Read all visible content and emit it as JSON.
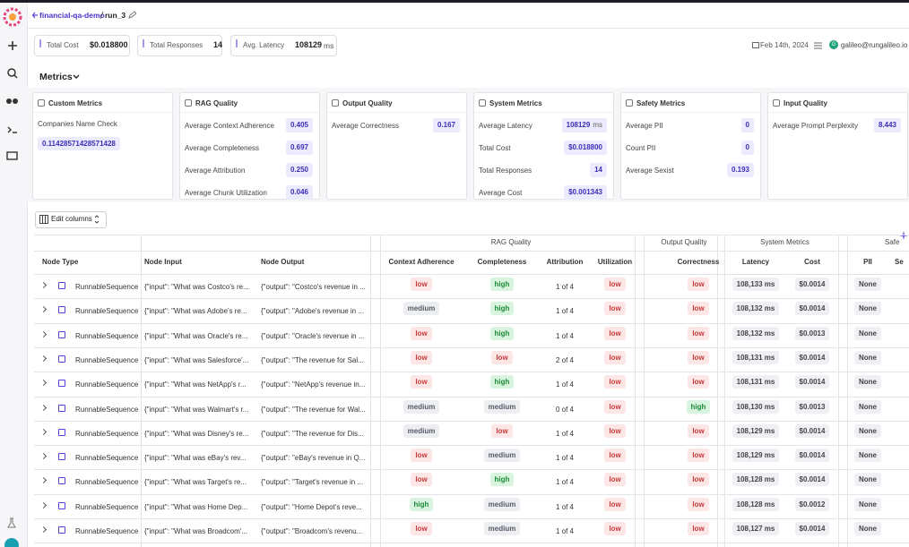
{
  "header": {
    "project": "financial-qa-demo",
    "run": "run_3",
    "date": "Feb 14th, 2024",
    "avatar": "G",
    "user": "galileo@rungalileo.io"
  },
  "stats": [
    {
      "label": "Total Cost",
      "value": "$0.018800"
    },
    {
      "label": "Total Responses",
      "value": "14"
    },
    {
      "label": "Avg. Latency",
      "value": "108129",
      "unit": "ms"
    }
  ],
  "metrics": {
    "title": "Metrics",
    "cards": [
      {
        "title": "Custom Metrics",
        "items": [
          {
            "label": "Companies Name Check",
            "value": "0.11428571428571428"
          }
        ]
      },
      {
        "title": "RAG Quality",
        "items": [
          {
            "label": "Average Context Adherence",
            "value": "0.405"
          },
          {
            "label": "Average Completeness",
            "value": "0.697"
          },
          {
            "label": "Average Attribution",
            "value": "0.250"
          },
          {
            "label": "Average Chunk Utilization",
            "value": "0.046"
          }
        ]
      },
      {
        "title": "Output Quality",
        "items": [
          {
            "label": "Average Correctness",
            "value": "0.167"
          }
        ]
      },
      {
        "title": "System Metrics",
        "items": [
          {
            "label": "Average Latency",
            "value": "108129",
            "unit": "ms"
          },
          {
            "label": "Total Cost",
            "value": "$0.018800"
          },
          {
            "label": "Total Responses",
            "value": "14"
          },
          {
            "label": "Average Cost",
            "value": "$0.001343"
          }
        ]
      },
      {
        "title": "Safety Metrics",
        "items": [
          {
            "label": "Average PII",
            "value": "0"
          },
          {
            "label": "Count PII",
            "value": "0"
          },
          {
            "label": "Average Sexist",
            "value": "0.193"
          }
        ]
      },
      {
        "title": "Input Quality",
        "items": [
          {
            "label": "Average Prompt Perplexity",
            "value": "8.443"
          }
        ]
      }
    ]
  },
  "edit_columns": "Edit columns",
  "table": {
    "groups": [
      "RAG Quality",
      "Output Quality",
      "System Metrics",
      "Safe"
    ],
    "columns": [
      "Node Type",
      "Node Input",
      "Node Output",
      "Context Adherence",
      "Completeness",
      "Attribution",
      "Utilization",
      "Correctness",
      "Latency",
      "Cost",
      "PII",
      "Se"
    ],
    "badge_colors": {
      "low": {
        "bg": "#fde6e6",
        "fg": "#c53b3b"
      },
      "medium": {
        "bg": "#eceef1",
        "fg": "#555b66"
      },
      "high": {
        "bg": "#d9f4de",
        "fg": "#1c8a3a"
      }
    },
    "rows": [
      [
        "RunnableSequence",
        "{\"input\": \"What was Costco's re...",
        "{\"output\": \"Costco's revenue in ...",
        "low",
        "high",
        "1 of 4",
        "low",
        "low",
        "108,133 ms",
        "$0.0014",
        "None"
      ],
      [
        "RunnableSequence",
        "{\"input\": \"What was Adobe's re...",
        "{\"output\": \"Adobe's revenue in ...",
        "medium",
        "high",
        "1 of 4",
        "low",
        "low",
        "108,132 ms",
        "$0.0014",
        "None"
      ],
      [
        "RunnableSequence",
        "{\"input\": \"What was Oracle's re...",
        "{\"output\": \"Oracle's revenue in ...",
        "low",
        "high",
        "1 of 4",
        "low",
        "low",
        "108,132 ms",
        "$0.0013",
        "None"
      ],
      [
        "RunnableSequence",
        "{\"input\": \"What was Salesforce'...",
        "{\"output\": \"The revenue for Sal...",
        "low",
        "low",
        "2 of 4",
        "low",
        "low",
        "108,131 ms",
        "$0.0014",
        "None"
      ],
      [
        "RunnableSequence",
        "{\"input\": \"What was NetApp's r...",
        "{\"output\": \"NetApp's revenue in...",
        "low",
        "high",
        "1 of 4",
        "low",
        "low",
        "108,131 ms",
        "$0.0014",
        "None"
      ],
      [
        "RunnableSequence",
        "{\"input\": \"What was Walmart's r...",
        "{\"output\": \"The revenue for Wal...",
        "medium",
        "medium",
        "0 of 4",
        "low",
        "high",
        "108,130 ms",
        "$0.0013",
        "None"
      ],
      [
        "RunnableSequence",
        "{\"input\": \"What was Disney's re...",
        "{\"output\": \"The revenue for Dis...",
        "medium",
        "low",
        "1 of 4",
        "low",
        "low",
        "108,129 ms",
        "$0.0014",
        "None"
      ],
      [
        "RunnableSequence",
        "{\"input\": \"What was eBay's rev...",
        "{\"output\": \"eBay's revenue in Q...",
        "low",
        "medium",
        "1 of 4",
        "low",
        "low",
        "108,129 ms",
        "$0.0014",
        "None"
      ],
      [
        "RunnableSequence",
        "{\"input\": \"What was Target's re...",
        "{\"output\": \"Target's revenue in ...",
        "low",
        "high",
        "1 of 4",
        "low",
        "low",
        "108,128 ms",
        "$0.0014",
        "None"
      ],
      [
        "RunnableSequence",
        "{\"input\": \"What was Home Dep...",
        "{\"output\": \"Home Depot's reve...",
        "high",
        "medium",
        "1 of 4",
        "low",
        "low",
        "108,128 ms",
        "$0.0012",
        "None"
      ],
      [
        "RunnableSequence",
        "{\"input\": \"What was Broadcom'...",
        "{\"output\": \"Broadcom's revenu...",
        "low",
        "medium",
        "1 of 4",
        "low",
        "low",
        "108,127 ms",
        "$0.0014",
        "None"
      ]
    ]
  }
}
